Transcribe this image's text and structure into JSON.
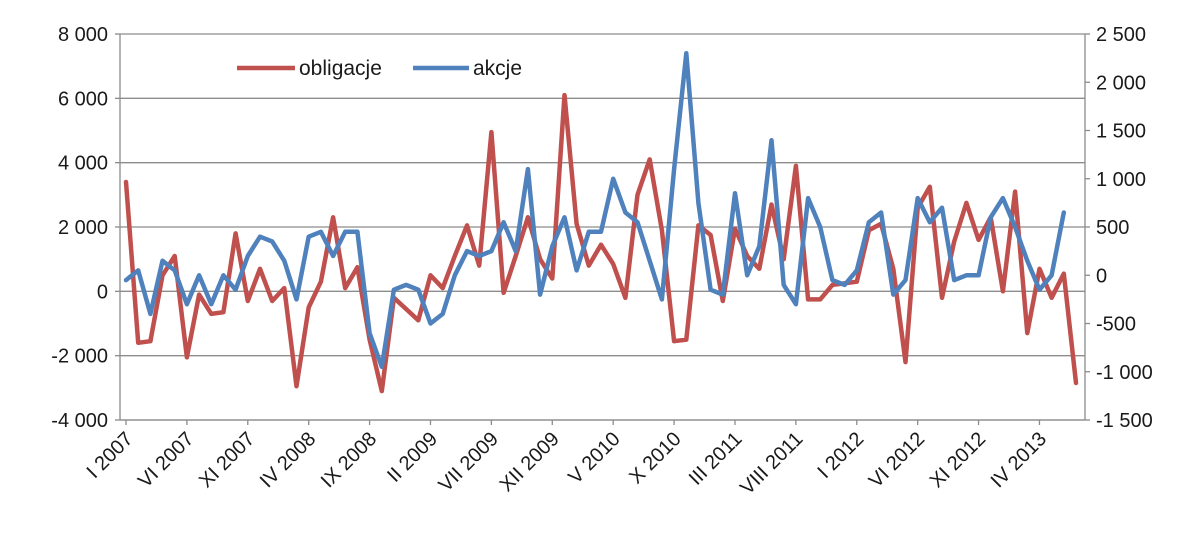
{
  "chart_data": {
    "type": "line",
    "left_axis": {
      "ylim": [
        -4000,
        8000
      ],
      "ticks": [
        8000,
        6000,
        4000,
        2000,
        0,
        -2000,
        -4000
      ],
      "tick_labels": [
        "8 000",
        "6 000",
        "4 000",
        "2 000",
        "0",
        "-2 000",
        "-4 000"
      ]
    },
    "right_axis": {
      "ylim": [
        -1500,
        2500
      ],
      "ticks": [
        2500,
        2000,
        1500,
        1000,
        500,
        0,
        -500,
        -1000,
        -1500
      ],
      "tick_labels": [
        "2 500",
        "2 000",
        "1 500",
        "1 000",
        "500",
        "0",
        "-500",
        "-1 000",
        "-1 500"
      ]
    },
    "x_tick_labels": [
      "I 2007",
      "VI 2007",
      "XI 2007",
      "IV 2008",
      "IX 2008",
      "II 2009",
      "VII 2009",
      "XII 2009",
      "V 2010",
      "X 2010",
      "III 2011",
      "VIII 2011",
      "I 2012",
      "VI 2012",
      "XI 2012",
      "IV 2013"
    ],
    "points_per_label": 5,
    "grid": true,
    "legend_position": "top-left",
    "series": [
      {
        "name": "obligacje",
        "axis": "left",
        "color": "#c0504d",
        "values": [
          3400,
          -1600,
          -1550,
          500,
          1100,
          -2050,
          -100,
          -700,
          -650,
          1800,
          -300,
          700,
          -300,
          100,
          -2950,
          -500,
          300,
          2300,
          100,
          750,
          -1500,
          -3100,
          -200,
          -550,
          -900,
          500,
          100,
          1100,
          2050,
          800,
          4950,
          -50,
          1100,
          2300,
          1000,
          400,
          6100,
          2100,
          800,
          1450,
          850,
          -200,
          3000,
          4100,
          1900,
          -1550,
          -1500,
          2050,
          1750,
          -300,
          1950,
          1100,
          700,
          2700,
          1000,
          3900,
          -250,
          -250,
          200,
          250,
          300,
          1900,
          2100,
          700,
          -2200,
          2600,
          3250,
          -200,
          1550,
          2750,
          1600,
          2300,
          0,
          3100,
          -1300,
          700,
          -200,
          550,
          -2850
        ]
      },
      {
        "name": "akcje",
        "axis": "right",
        "color": "#4f81bd",
        "values": [
          -50,
          50,
          -400,
          150,
          50,
          -300,
          0,
          -300,
          0,
          -150,
          200,
          400,
          350,
          150,
          -250,
          400,
          450,
          200,
          450,
          450,
          -600,
          -950,
          -150,
          -100,
          -150,
          -500,
          -400,
          0,
          250,
          200,
          250,
          550,
          250,
          1100,
          -200,
          300,
          600,
          50,
          450,
          450,
          1000,
          650,
          550,
          150,
          -250,
          1100,
          2300,
          750,
          -150,
          -200,
          850,
          0,
          300,
          1400,
          -100,
          -300,
          800,
          500,
          -50,
          -100,
          50,
          550,
          650,
          -200,
          -50,
          800,
          550,
          700,
          -50,
          0,
          0,
          600,
          800,
          500,
          150,
          -150,
          0,
          650
        ]
      }
    ]
  }
}
